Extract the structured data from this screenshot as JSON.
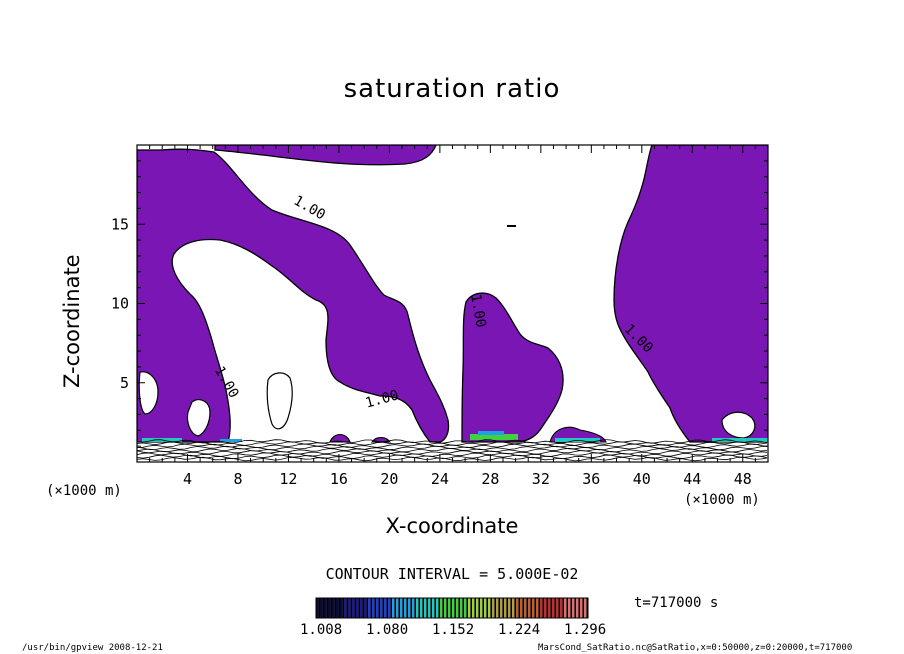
{
  "chart_data": {
    "type": "contour",
    "title": "saturation ratio",
    "xlabel": "X-coordinate",
    "ylabel": "Z-coordinate",
    "x_unit_left": "(×1000 m)",
    "x_unit_right": "(×1000 m)",
    "xlim": [
      0,
      50
    ],
    "ylim": [
      0,
      20
    ],
    "x_ticks": [
      4,
      8,
      12,
      16,
      20,
      24,
      28,
      32,
      36,
      40,
      44,
      48
    ],
    "y_ticks": [
      5,
      10,
      15
    ],
    "contour_labels": [
      {
        "text": "1.00",
        "x": 13.5,
        "z": 15.8,
        "angle": 30
      },
      {
        "text": "1.00",
        "x": 6.8,
        "z": 4.9,
        "angle": 60
      },
      {
        "text": "1.00",
        "x": 19.5,
        "z": 3.7,
        "angle": -15
      },
      {
        "text": "1.00",
        "x": 26.7,
        "z": 9.5,
        "angle": 80
      },
      {
        "text": "1.00",
        "x": 39.5,
        "z": 7.6,
        "angle": 45
      }
    ],
    "fill_color": "#7a16b3",
    "contour_interval": "CONTOUR INTERVAL = 5.000E-02",
    "colorbar": {
      "tick_labels": [
        "1.008",
        "1.080",
        "1.152",
        "1.224",
        "1.296"
      ],
      "colors": [
        "#0a0a3a",
        "#1a1a8c",
        "#2040d0",
        "#1fa0e0",
        "#20c8c0",
        "#40d040",
        "#a0d040",
        "#b0a040",
        "#c06030",
        "#c03030",
        "#e07070"
      ]
    },
    "time_label": "t=717000 s"
  },
  "footer": {
    "left": "/usr/bin/gpview   2008-12-21",
    "right": "MarsCond_SatRatio.nc@SatRatio,x=0:50000,z=0:20000,t=717000"
  }
}
